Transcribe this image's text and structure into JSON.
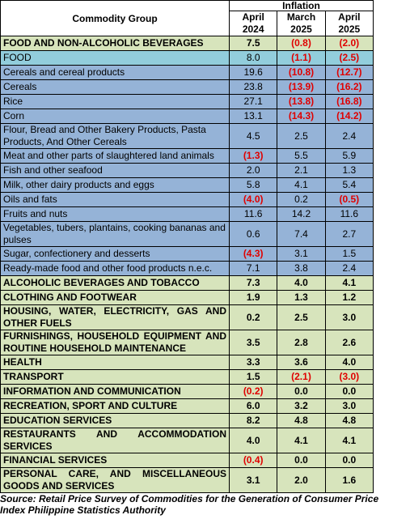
{
  "header": {
    "commodity": "Commodity Group",
    "inflation": "Inflation",
    "columns": [
      "April\n2024",
      "March\n2025",
      "April\n2025"
    ]
  },
  "table": {
    "rows": [
      [
        "FOOD AND NON-ALCOHOLIC BEVERAGES",
        "7.5",
        "(0.8)",
        "(2.0)"
      ],
      [
        "FOOD",
        "8.0",
        "(1.1)",
        "(2.5)"
      ],
      [
        "Cereals and cereal products",
        "19.6",
        "(10.8)",
        "(12.7)"
      ],
      [
        "Cereals",
        "23.8",
        "(13.9)",
        "(16.2)"
      ],
      [
        "Rice",
        "27.1",
        "(13.8)",
        "(16.8)"
      ],
      [
        "Corn",
        "13.1",
        "(14.3)",
        "(14.2)"
      ],
      [
        "Flour, Bread and Other Bakery Products, Pasta Products, And Other Cereals",
        "4.5",
        "2.5",
        "2.4"
      ],
      [
        "Meat and other parts of slaughtered land animals",
        "(1.3)",
        "5.5",
        "5.9"
      ],
      [
        "Fish and other seafood",
        "2.0",
        "2.1",
        "1.3"
      ],
      [
        "Milk, other dairy products and eggs",
        "5.8",
        "4.1",
        "5.4"
      ],
      [
        "Oils and fats",
        "(4.0)",
        "0.2",
        "(0.5)"
      ],
      [
        "Fruits and nuts",
        "11.6",
        "14.2",
        "11.6"
      ],
      [
        "Vegetables, tubers, plantains, cooking bananas and pulses",
        "0.6",
        "7.4",
        "2.7"
      ],
      [
        "Sugar, confectionery and desserts",
        "(4.3)",
        "3.1",
        "1.5"
      ],
      [
        "Ready-made food and other food products n.e.c.",
        "7.1",
        "3.8",
        "2.4"
      ],
      [
        "ALCOHOLIC BEVERAGES AND TOBACCO",
        "7.3",
        "4.0",
        "4.1"
      ],
      [
        "CLOTHING AND FOOTWEAR",
        "1.9",
        "1.3",
        "1.2"
      ],
      [
        "HOUSING, WATER, ELECTRICITY, GAS AND OTHER FUELS",
        "0.2",
        "2.5",
        "3.0"
      ],
      [
        "FURNISHINGS, HOUSEHOLD EQUIPMENT AND ROUTINE HOUSEHOLD MAINTENANCE",
        "3.5",
        "2.8",
        "2.6"
      ],
      [
        "HEALTH",
        "3.3",
        "3.6",
        "4.0"
      ],
      [
        "TRANSPORT",
        "1.5",
        "(2.1)",
        "(3.0)"
      ],
      [
        "INFORMATION AND COMMUNICATION",
        "(0.2)",
        "0.0",
        "0.0"
      ],
      [
        "RECREATION, SPORT AND CULTURE",
        "6.0",
        "3.2",
        "3.0"
      ],
      [
        "EDUCATION SERVICES",
        "8.2",
        "4.8",
        "4.8"
      ],
      [
        "RESTAURANTS AND ACCOMMODATION SERVICES",
        "4.0",
        "4.1",
        "4.1"
      ],
      [
        "FINANCIAL SERVICES",
        "(0.4)",
        "0.0",
        "0.0"
      ],
      [
        "PERSONAL CARE, AND MISCELLANEOUS GOODS AND SERVICES",
        "3.1",
        "2.0",
        "1.6"
      ]
    ]
  },
  "footer": {
    "source": "Source: Retail Price Survey of Commodities for the Generation of Consumer Price Index Philippine Statistics Authority"
  }
}
